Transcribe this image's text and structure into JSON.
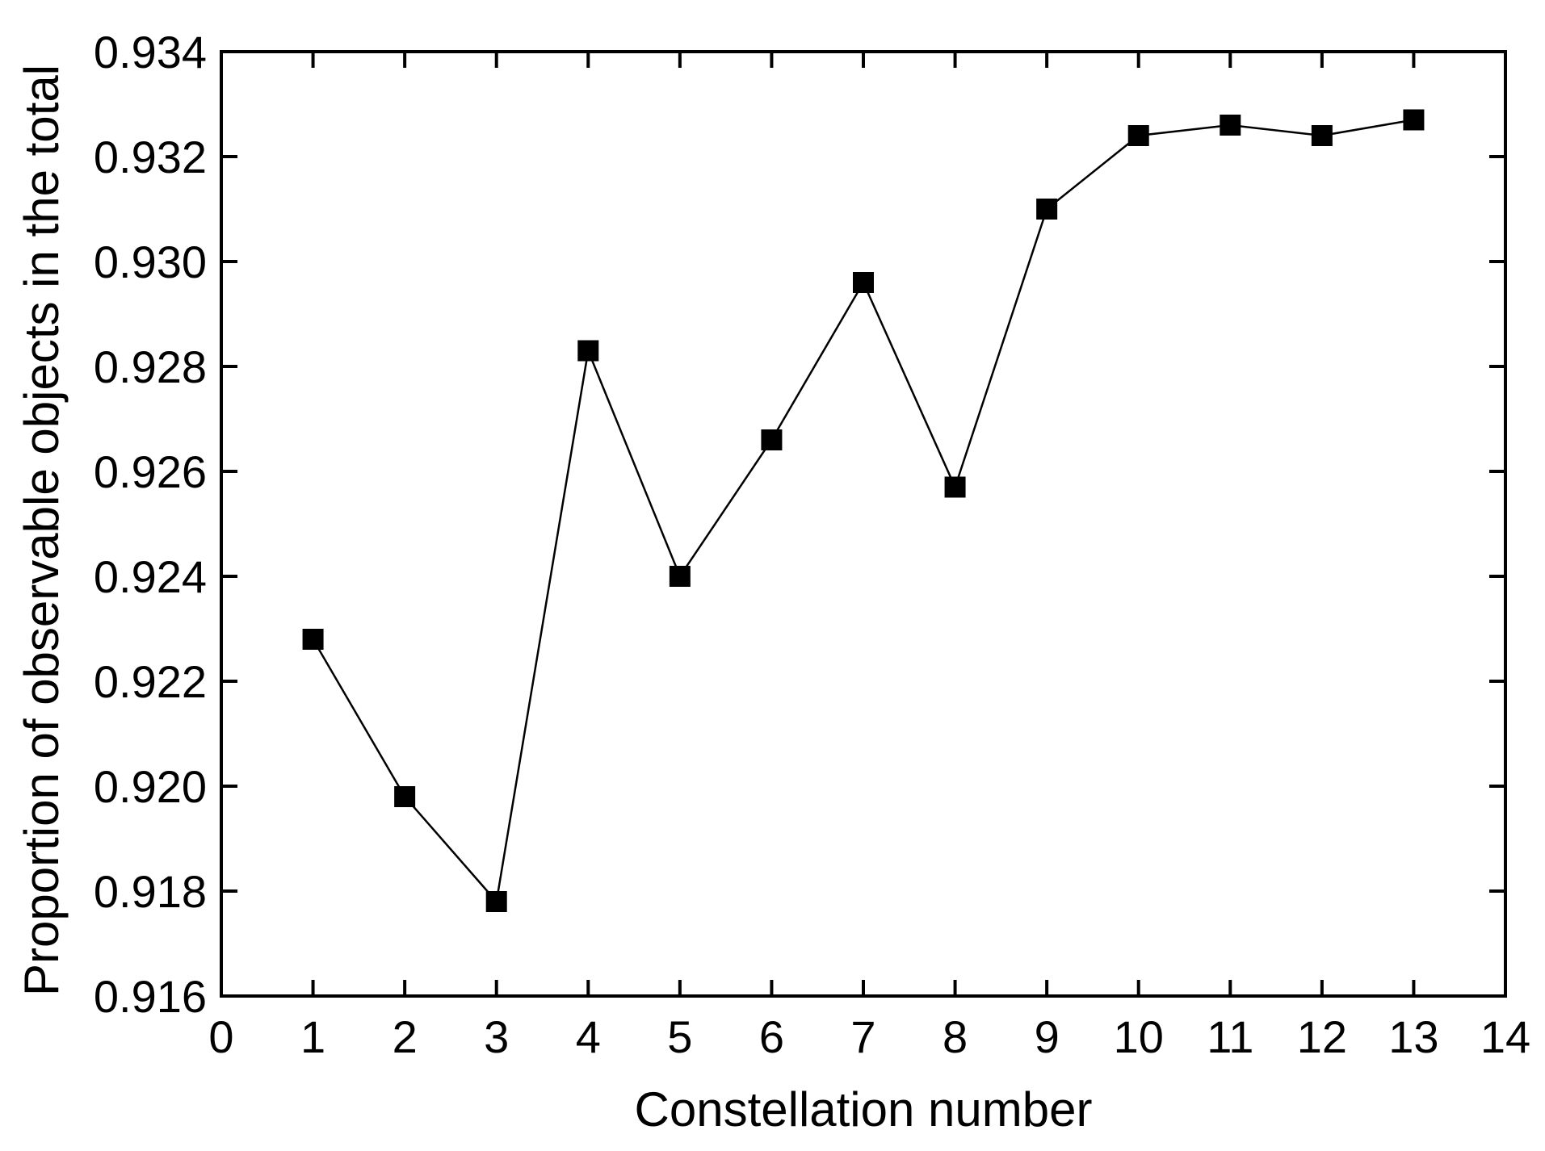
{
  "chart_data": {
    "type": "line",
    "title": "",
    "xlabel": "Constellation number",
    "ylabel": "Proportion of observable objects in the total",
    "xlim": [
      0,
      14
    ],
    "ylim": [
      0.916,
      0.934
    ],
    "x_ticks": [
      "0",
      "1",
      "2",
      "3",
      "4",
      "5",
      "6",
      "7",
      "8",
      "9",
      "10",
      "11",
      "12",
      "13",
      "14"
    ],
    "y_ticks": [
      "0.916",
      "0.918",
      "0.920",
      "0.922",
      "0.924",
      "0.926",
      "0.928",
      "0.930",
      "0.932",
      "0.934"
    ],
    "grid": false,
    "legend": "none",
    "marker": "square",
    "colors": {
      "line": "#000000",
      "marker": "#000000",
      "axes": "#000000"
    },
    "series": [
      {
        "x": [
          1,
          2,
          3,
          4,
          5,
          6,
          7,
          8,
          9,
          10,
          11,
          12,
          13
        ],
        "values": [
          0.9228,
          0.9198,
          0.9178,
          0.9283,
          0.924,
          0.9266,
          0.9296,
          0.9257,
          0.931,
          0.9324,
          0.9326,
          0.9324,
          0.9327
        ]
      }
    ]
  }
}
